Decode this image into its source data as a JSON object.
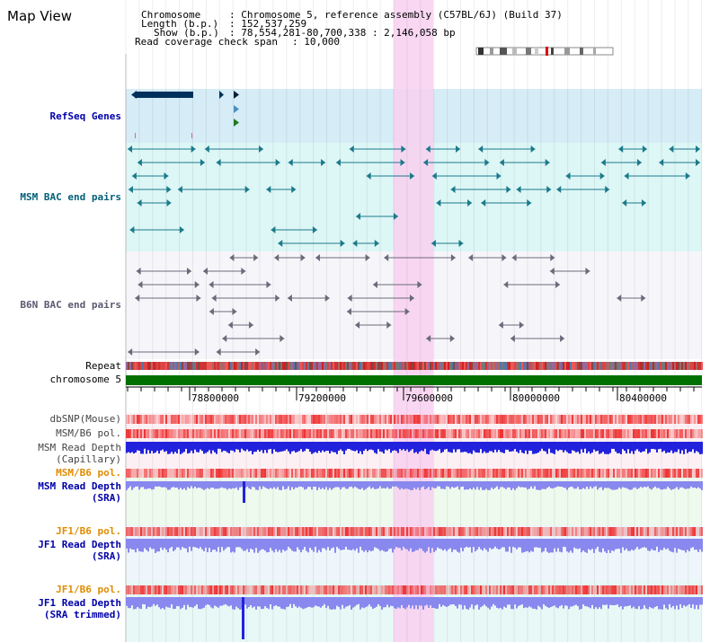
{
  "title": "Map View",
  "header": {
    "chromosome_key": "Chromosome",
    "chromosome_value": ": Chromosome 5, reference assembly (C57BL/6J) (Build 37)",
    "length_key": "Length (b.p.)",
    "length_value": ": 152,537,259",
    "show_key": "Show (b.p.)",
    "show_value": ": 78,554,281-80,700,338 : 2,146,058 bp",
    "coverage_key": "Read coverage check span",
    "coverage_value": ": 10,000"
  },
  "tracks": {
    "refseq": "RefSeq Genes",
    "msm_bac": "MSM BAC end pairs",
    "b6n_bac": "B6N BAC end pairs",
    "repeat": "Repeat",
    "chromosome": "chromosome 5",
    "dbsnp": "dbSNP(Mouse)",
    "msm_b6_pol_1": "MSM/B6 pol.",
    "msm_read_depth_cap_1": "MSM Read Depth",
    "msm_read_depth_cap_2": "(Capillary)",
    "msm_b6_pol_2": "MSM/B6 pol.",
    "msm_read_depth_sra_1": "MSM Read Depth",
    "msm_read_depth_sra_2": "(SRA)",
    "jf1_b6_pol_1": "JF1/B6 pol.",
    "jf1_read_depth_sra_1": "JF1 Read Depth",
    "jf1_read_depth_sra_2": "(SRA)",
    "jf1_b6_pol_2": "JF1/B6 pol.",
    "jf1_read_depth_trim_1": "JF1 Read Depth",
    "jf1_read_depth_trim_2": "(SRA trimmed)"
  },
  "ruler": {
    "ticks": [
      "78800000",
      "79200000",
      "79600000",
      "80000000",
      "80400000"
    ]
  },
  "colors": {
    "highlight": "#f8d0f0",
    "refseq_bg": "#d6ecf6",
    "msm_bg": "#ddf6f6",
    "b6n_bg": "#f6f6fa",
    "chromosome_bar": "#007000",
    "gene": "#00305c",
    "msm_mark": "#1a7a8a",
    "b6n_mark": "#6a6a7a",
    "depth_blue": "#2222dd",
    "depth_light": "#8888ee",
    "pol_red": "#ee3333"
  }
}
